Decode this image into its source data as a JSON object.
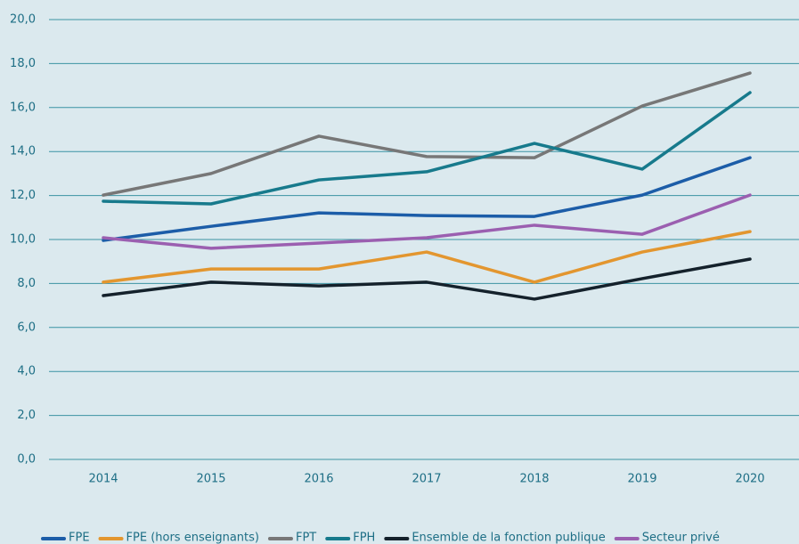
{
  "chart_data": {
    "type": "line",
    "categories": [
      "2014",
      "2015",
      "2016",
      "2017",
      "2018",
      "2019",
      "2020"
    ],
    "ylim": [
      0,
      20
    ],
    "yticks": [
      {
        "value": 0,
        "label": "0,0"
      },
      {
        "value": 2,
        "label": "2,0"
      },
      {
        "value": 4,
        "label": "4,0"
      },
      {
        "value": 6,
        "label": "6,0"
      },
      {
        "value": 8,
        "label": "8,0"
      },
      {
        "value": 10,
        "label": "10,0"
      },
      {
        "value": 12,
        "label": "12,0"
      },
      {
        "value": 14,
        "label": "14,0"
      },
      {
        "value": 16,
        "label": "16,0"
      },
      {
        "value": 18,
        "label": "18,0"
      },
      {
        "value": 20,
        "label": "20,0"
      }
    ],
    "grid": true,
    "series": [
      {
        "name": "FPE",
        "color": "#1c5da8",
        "values": [
          9.96,
          10.6,
          11.21,
          11.09,
          11.05,
          12.02,
          13.72
        ]
      },
      {
        "name": "FPE (hors enseignants)",
        "color": "#e3962f",
        "values": [
          8.06,
          8.66,
          8.66,
          9.43,
          8.06,
          9.43,
          10.36
        ]
      },
      {
        "name": "FPT",
        "color": "#777777",
        "values": [
          12.02,
          13.0,
          14.7,
          13.77,
          13.72,
          16.07,
          17.57
        ]
      },
      {
        "name": "FPH",
        "color": "#177a8c",
        "values": [
          11.74,
          11.62,
          12.71,
          13.08,
          14.37,
          13.2,
          16.68
        ]
      },
      {
        "name": "Ensemble de la fonction publique",
        "color": "#14212b",
        "values": [
          7.45,
          8.06,
          7.89,
          8.06,
          7.29,
          8.22,
          9.11
        ]
      },
      {
        "name": "Secteur privé",
        "color": "#9b5fb0",
        "values": [
          10.08,
          9.6,
          9.84,
          10.08,
          10.65,
          10.24,
          12.02
        ]
      }
    ]
  }
}
